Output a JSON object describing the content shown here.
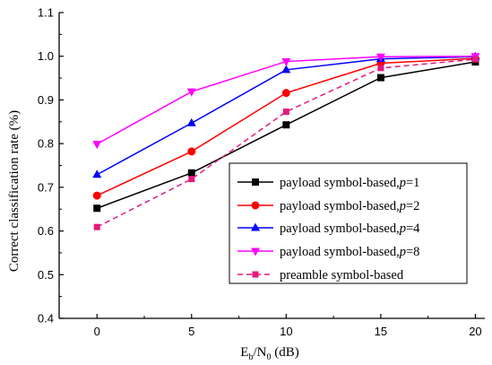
{
  "chart_data": {
    "type": "line",
    "x": [
      0,
      5,
      10,
      15,
      20
    ],
    "xlim": [
      -2,
      20.5
    ],
    "ylim": [
      0.4,
      1.1
    ],
    "xticks": [
      0,
      5,
      10,
      15,
      20
    ],
    "yticks": [
      0.4,
      0.5,
      0.6,
      0.7,
      0.8,
      0.9,
      1.0,
      1.1
    ],
    "xtick_labels": [
      "0",
      "5",
      "10",
      "15",
      "20"
    ],
    "ytick_labels": [
      "0.4",
      "0.5",
      "0.6",
      "0.7",
      "0.8",
      "0.9",
      "1.0",
      "1.1"
    ],
    "xlabel_main": "E",
    "xlabel_sub1": "b",
    "xlabel_mid": "/N",
    "xlabel_sub2": "0",
    "xlabel_tail": " (dB)",
    "ylabel": "Correct classification rate (%)",
    "grid": false,
    "legend_position": "lower-right",
    "series": [
      {
        "legend_prefix": "payload symbol-based,",
        "legend_var": "p",
        "legend_suffix": "=1",
        "color": "#000000",
        "marker": "square",
        "dashed": false,
        "values": [
          0.652,
          0.733,
          0.843,
          0.951,
          0.987
        ]
      },
      {
        "legend_prefix": "payload symbol-based,",
        "legend_var": "p",
        "legend_suffix": "=2",
        "color": "#ff0000",
        "marker": "circle",
        "dashed": false,
        "values": [
          0.681,
          0.782,
          0.916,
          0.984,
          0.995
        ]
      },
      {
        "legend_prefix": "payload symbol-based,",
        "legend_var": "p",
        "legend_suffix": "=4",
        "color": "#0000ff",
        "marker": "triangle-up",
        "dashed": false,
        "values": [
          0.729,
          0.847,
          0.969,
          0.994,
          0.999
        ]
      },
      {
        "legend_prefix": "payload symbol-based,",
        "legend_var": "p",
        "legend_suffix": "=8",
        "color": "#ff00ff",
        "marker": "triangle-down",
        "dashed": false,
        "values": [
          0.799,
          0.919,
          0.988,
          0.999,
          1.0
        ]
      },
      {
        "legend_prefix": "preamble symbol-based",
        "legend_var": "",
        "legend_suffix": "",
        "color": "#e6197d",
        "marker": "small-square",
        "dashed": true,
        "values": [
          0.609,
          0.719,
          0.873,
          0.973,
          0.993
        ]
      }
    ]
  }
}
